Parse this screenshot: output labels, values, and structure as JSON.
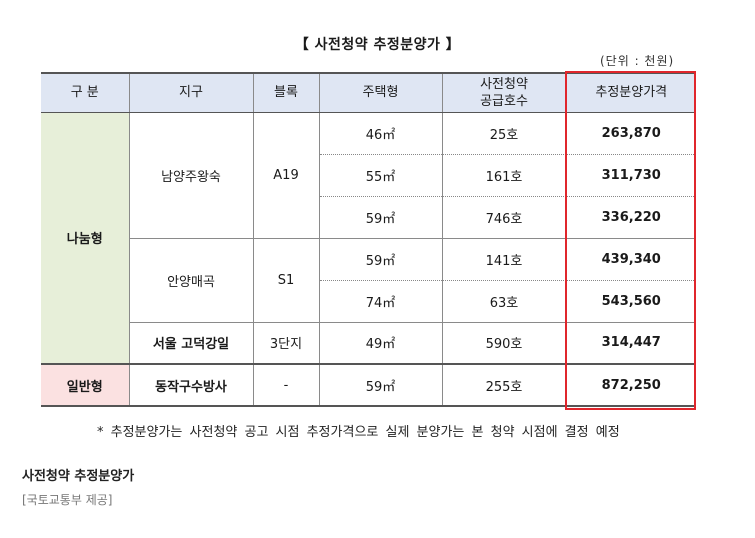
{
  "title": "【 사전청약 추정분양가 】",
  "unit": "(단위 : 천원)",
  "table": {
    "headers": {
      "group": "구 분",
      "district": "지구",
      "block": "블록",
      "type": "주택형",
      "supply_line1": "사전청약",
      "supply_line2": "공급호수",
      "price": "추정분양가격"
    },
    "groups": {
      "share": "나눔형",
      "general": "일반형"
    },
    "districts": [
      {
        "name": "남양주왕숙",
        "block": "A19"
      },
      {
        "name": "안양매곡",
        "block": "S1"
      },
      {
        "name": "서울 고덕강일",
        "block": "3단지"
      },
      {
        "name": "동작구수방사",
        "block": "-"
      }
    ],
    "rows": [
      {
        "type": "46㎡",
        "supply": "25호",
        "price": "263,870"
      },
      {
        "type": "55㎡",
        "supply": "161호",
        "price": "311,730"
      },
      {
        "type": "59㎡",
        "supply": "746호",
        "price": "336,220"
      },
      {
        "type": "59㎡",
        "supply": "141호",
        "price": "439,340"
      },
      {
        "type": "74㎡",
        "supply": "63호",
        "price": "543,560"
      },
      {
        "type": "49㎡",
        "supply": "590호",
        "price": "314,447"
      },
      {
        "type": "59㎡",
        "supply": "255호",
        "price": "872,250"
      }
    ]
  },
  "note": "* 추정분양가는 사전청약 공고 시점 추정가격으로 실제 분양가는 본 청약 시점에 결정 예정",
  "caption": "사전청약 추정분양가",
  "source": "[국토교통부 제공]",
  "colors": {
    "header_bg": "#dfe6f3",
    "share_bg": "#e7efd9",
    "general_bg": "#fbe1e1",
    "highlight": "#e0262c"
  }
}
